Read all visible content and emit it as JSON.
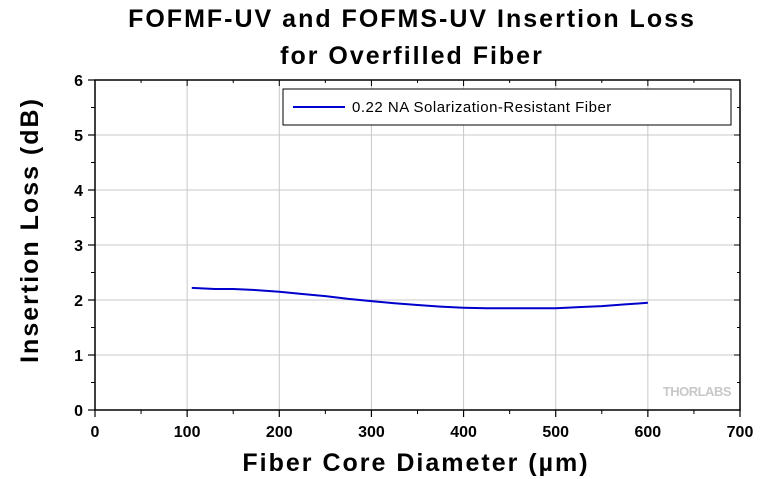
{
  "chart_data": {
    "type": "line",
    "title": [
      "FOFMF-UV and FOFMS-UV Insertion Loss",
      "for Overfilled Fiber"
    ],
    "xlabel": "Fiber Core Diameter (µm)",
    "ylabel": "Insertion Loss (dB)",
    "xlim": [
      0,
      700
    ],
    "ylim": [
      0,
      6
    ],
    "xticks": [
      0,
      100,
      200,
      300,
      400,
      500,
      600,
      700
    ],
    "yticks": [
      0,
      1,
      2,
      3,
      4,
      5,
      6
    ],
    "grid": true,
    "legend_position": "top-right",
    "series": [
      {
        "name": "0.22 NA Solarization-Resistant Fiber",
        "color": "#0000cc",
        "x": [
          105,
          130,
          150,
          175,
          200,
          225,
          250,
          275,
          300,
          325,
          350,
          375,
          400,
          425,
          450,
          475,
          500,
          525,
          550,
          575,
          600
        ],
        "y": [
          2.22,
          2.2,
          2.2,
          2.18,
          2.15,
          2.11,
          2.07,
          2.02,
          1.98,
          1.94,
          1.91,
          1.88,
          1.86,
          1.85,
          1.85,
          1.85,
          1.85,
          1.87,
          1.89,
          1.92,
          1.95
        ]
      }
    ]
  },
  "watermark": "THORLABS"
}
